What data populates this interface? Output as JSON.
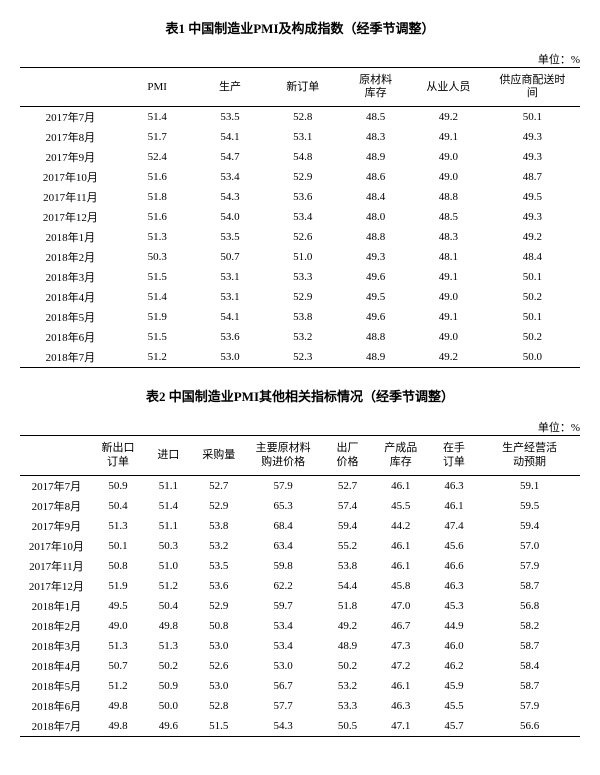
{
  "table1": {
    "title": "表1 中国制造业PMI及构成指数（经季节调整）",
    "unit": "单位：%",
    "columns": [
      "",
      "PMI",
      "生产",
      "新订单",
      "原材料\n库存",
      "从业人员",
      "供应商配送时\n间"
    ],
    "rows": [
      [
        "2017年7月",
        "51.4",
        "53.5",
        "52.8",
        "48.5",
        "49.2",
        "50.1"
      ],
      [
        "2017年8月",
        "51.7",
        "54.1",
        "53.1",
        "48.3",
        "49.1",
        "49.3"
      ],
      [
        "2017年9月",
        "52.4",
        "54.7",
        "54.8",
        "48.9",
        "49.0",
        "49.3"
      ],
      [
        "2017年10月",
        "51.6",
        "53.4",
        "52.9",
        "48.6",
        "49.0",
        "48.7"
      ],
      [
        "2017年11月",
        "51.8",
        "54.3",
        "53.6",
        "48.4",
        "48.8",
        "49.5"
      ],
      [
        "2017年12月",
        "51.6",
        "54.0",
        "53.4",
        "48.0",
        "48.5",
        "49.3"
      ],
      [
        "2018年1月",
        "51.3",
        "53.5",
        "52.6",
        "48.8",
        "48.3",
        "49.2"
      ],
      [
        "2018年2月",
        "50.3",
        "50.7",
        "51.0",
        "49.3",
        "48.1",
        "48.4"
      ],
      [
        "2018年3月",
        "51.5",
        "53.1",
        "53.3",
        "49.6",
        "49.1",
        "50.1"
      ],
      [
        "2018年4月",
        "51.4",
        "53.1",
        "52.9",
        "49.5",
        "49.0",
        "50.2"
      ],
      [
        "2018年5月",
        "51.9",
        "54.1",
        "53.8",
        "49.6",
        "49.1",
        "50.1"
      ],
      [
        "2018年6月",
        "51.5",
        "53.6",
        "53.2",
        "48.8",
        "49.0",
        "50.2"
      ],
      [
        "2018年7月",
        "51.2",
        "53.0",
        "52.3",
        "48.9",
        "49.2",
        "50.0"
      ]
    ]
  },
  "table2": {
    "title": "表2 中国制造业PMI其他相关指标情况（经季节调整）",
    "unit": "单位：%",
    "columns": [
      "",
      "新出口\n订单",
      "进口",
      "采购量",
      "主要原材料\n购进价格",
      "出厂\n价格",
      "产成品\n库存",
      "在手\n订单",
      "生产经营活\n动预期"
    ],
    "rows": [
      [
        "2017年7月",
        "50.9",
        "51.1",
        "52.7",
        "57.9",
        "52.7",
        "46.1",
        "46.3",
        "59.1"
      ],
      [
        "2017年8月",
        "50.4",
        "51.4",
        "52.9",
        "65.3",
        "57.4",
        "45.5",
        "46.1",
        "59.5"
      ],
      [
        "2017年9月",
        "51.3",
        "51.1",
        "53.8",
        "68.4",
        "59.4",
        "44.2",
        "47.4",
        "59.4"
      ],
      [
        "2017年10月",
        "50.1",
        "50.3",
        "53.2",
        "63.4",
        "55.2",
        "46.1",
        "45.6",
        "57.0"
      ],
      [
        "2017年11月",
        "50.8",
        "51.0",
        "53.5",
        "59.8",
        "53.8",
        "46.1",
        "46.6",
        "57.9"
      ],
      [
        "2017年12月",
        "51.9",
        "51.2",
        "53.6",
        "62.2",
        "54.4",
        "45.8",
        "46.3",
        "58.7"
      ],
      [
        "2018年1月",
        "49.5",
        "50.4",
        "52.9",
        "59.7",
        "51.8",
        "47.0",
        "45.3",
        "56.8"
      ],
      [
        "2018年2月",
        "49.0",
        "49.8",
        "50.8",
        "53.4",
        "49.2",
        "46.7",
        "44.9",
        "58.2"
      ],
      [
        "2018年3月",
        "51.3",
        "51.3",
        "53.0",
        "53.4",
        "48.9",
        "47.3",
        "46.0",
        "58.7"
      ],
      [
        "2018年4月",
        "50.7",
        "50.2",
        "52.6",
        "53.0",
        "50.2",
        "47.2",
        "46.2",
        "58.4"
      ],
      [
        "2018年5月",
        "51.2",
        "50.9",
        "53.0",
        "56.7",
        "53.2",
        "46.1",
        "45.9",
        "58.7"
      ],
      [
        "2018年6月",
        "49.8",
        "50.0",
        "52.8",
        "57.7",
        "53.3",
        "46.3",
        "45.5",
        "57.9"
      ],
      [
        "2018年7月",
        "49.8",
        "49.6",
        "51.5",
        "54.3",
        "50.5",
        "47.1",
        "45.7",
        "56.6"
      ]
    ]
  }
}
